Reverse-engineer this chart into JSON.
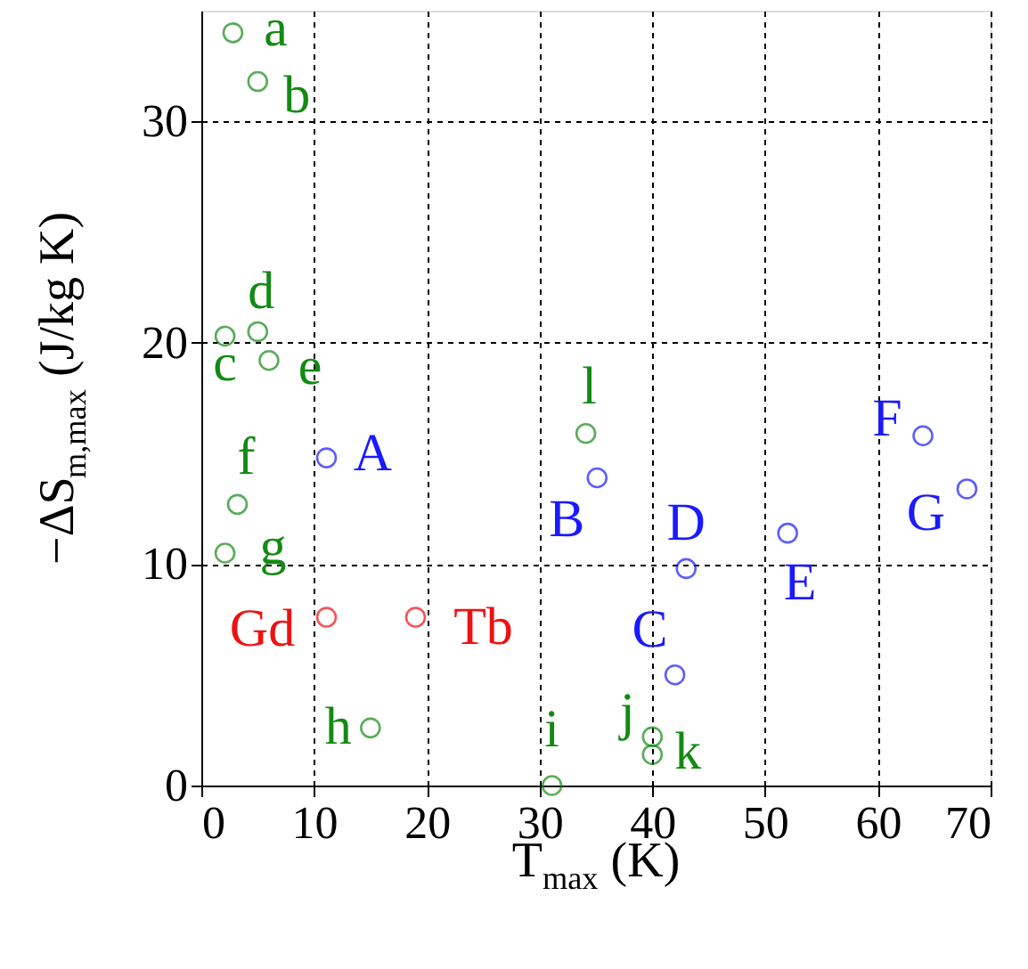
{
  "chart_data": {
    "type": "scatter",
    "xlabel": "T$_{max}$ (K)",
    "ylabel": "−ΔS$_{m,max}$ (J/kg K)",
    "xlim": [
      0,
      70
    ],
    "xticks": [
      0,
      10,
      20,
      30,
      40,
      50,
      60,
      70
    ],
    "ylim": [
      0,
      35
    ],
    "yticks": [
      0,
      10,
      20,
      30
    ],
    "grid": true,
    "marker": "circle",
    "series": [
      {
        "color": "#138a13",
        "x": [
          2.8,
          5.0,
          2.1,
          5.0,
          6.0,
          3.2,
          2.1,
          15.0,
          31.1,
          40.0,
          40.0,
          34.1
        ],
        "values": [
          34.0,
          31.8,
          20.3,
          20.5,
          19.2,
          12.7,
          10.5,
          2.6,
          0,
          2.2,
          1.4,
          15.9
        ]
      },
      {
        "color": "#1a1aff",
        "x": [
          11.1,
          35.1,
          42.0,
          43.0,
          52.0,
          64.0,
          67.9
        ],
        "values": [
          14.8,
          13.9,
          5.0,
          9.8,
          11.4,
          15.8,
          13.4
        ]
      },
      {
        "color": "#ee1111",
        "x": [
          11.1,
          19.0
        ],
        "values": [
          7.6,
          7.6
        ]
      }
    ],
    "annotations": [
      {
        "text": "a",
        "x": 2.8,
        "y": 34.0
      },
      {
        "text": "b",
        "x": 5.0,
        "y": 31.8
      },
      {
        "text": "c",
        "x": 2.1,
        "y": 20.3
      },
      {
        "text": "d",
        "x": 5.0,
        "y": 20.5
      },
      {
        "text": "e",
        "x": 6.0,
        "y": 19.2
      },
      {
        "text": "f",
        "x": 3.2,
        "y": 12.7
      },
      {
        "text": "g",
        "x": 2.1,
        "y": 10.5
      },
      {
        "text": "h",
        "x": 15.0,
        "y": 2.6
      },
      {
        "text": "i",
        "x": 31.1,
        "y": 0
      },
      {
        "text": "j",
        "x": 40.0,
        "y": 2.2
      },
      {
        "text": "k",
        "x": 40.0,
        "y": 1.4
      },
      {
        "text": "l",
        "x": 34.1,
        "y": 15.9
      },
      {
        "text": "A",
        "x": 11.1,
        "y": 14.8
      },
      {
        "text": "B",
        "x": 35.1,
        "y": 13.9
      },
      {
        "text": "C",
        "x": 42.0,
        "y": 5.0
      },
      {
        "text": "D",
        "x": 43.0,
        "y": 9.8
      },
      {
        "text": "E",
        "x": 52.0,
        "y": 11.4
      },
      {
        "text": "F",
        "x": 64.0,
        "y": 15.8
      },
      {
        "text": "G",
        "x": 67.9,
        "y": 13.4
      },
      {
        "text": "Gd",
        "x": 11.1,
        "y": 7.6
      },
      {
        "text": "Tb",
        "x": 19.0,
        "y": 7.6
      }
    ]
  }
}
